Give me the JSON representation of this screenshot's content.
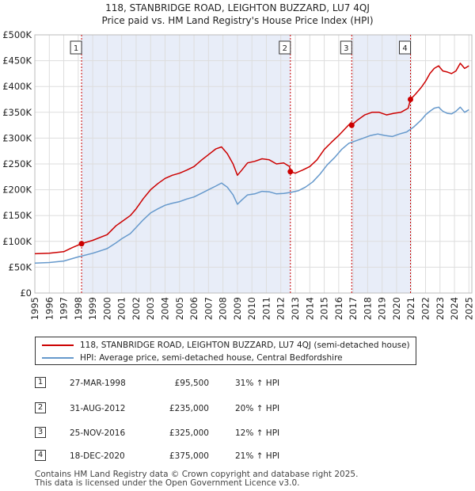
{
  "header": {
    "title_line1": "118, STANBRIDGE ROAD, LEIGHTON BUZZARD, LU7 4QJ",
    "title_line2": "Price paid vs. HM Land Registry's House Price Index (HPI)"
  },
  "colors": {
    "property": "#cc0000",
    "hpi": "#6699cc",
    "shade": "#e8edf8",
    "grid": "#dddddd",
    "marker_line": "#cc0000"
  },
  "legend": {
    "property_label": "118, STANBRIDGE ROAD, LEIGHTON BUZZARD, LU7 4QJ (semi-detached house)",
    "hpi_label": "HPI: Average price, semi-detached house, Central Bedfordshire"
  },
  "transactions": [
    {
      "num": "1",
      "date": "27-MAR-1998",
      "price": "£95,500",
      "hpi": "31% ↑ HPI"
    },
    {
      "num": "2",
      "date": "31-AUG-2012",
      "price": "£235,000",
      "hpi": "20% ↑ HPI"
    },
    {
      "num": "3",
      "date": "25-NOV-2016",
      "price": "£325,000",
      "hpi": "12% ↑ HPI"
    },
    {
      "num": "4",
      "date": "18-DEC-2020",
      "price": "£375,000",
      "hpi": "21% ↑ HPI"
    }
  ],
  "footer": {
    "line1": "Contains HM Land Registry data © Crown copyright and database right 2025.",
    "line2": "This data is licensed under the Open Government Licence v3.0."
  },
  "chart_data": {
    "type": "line",
    "title": "118, STANBRIDGE ROAD, LEIGHTON BUZZARD, LU7 4QJ — Price paid vs. HM Land Registry's House Price Index (HPI)",
    "xlim": [
      1995,
      2025.2
    ],
    "ylim": [
      0,
      500000
    ],
    "grid": true,
    "y_ticks": [
      {
        "value": 0,
        "label": "£0"
      },
      {
        "value": 50000,
        "label": "£50K"
      },
      {
        "value": 100000,
        "label": "£100K"
      },
      {
        "value": 150000,
        "label": "£150K"
      },
      {
        "value": 200000,
        "label": "£200K"
      },
      {
        "value": 250000,
        "label": "£250K"
      },
      {
        "value": 300000,
        "label": "£300K"
      },
      {
        "value": 350000,
        "label": "£350K"
      },
      {
        "value": 400000,
        "label": "£400K"
      },
      {
        "value": 450000,
        "label": "£450K"
      },
      {
        "value": 500000,
        "label": "£500K"
      }
    ],
    "x_ticks": [
      "1995",
      "1996",
      "1997",
      "1998",
      "1999",
      "2000",
      "2001",
      "2002",
      "2003",
      "2004",
      "2005",
      "2006",
      "2007",
      "2008",
      "2009",
      "2010",
      "2011",
      "2012",
      "2013",
      "2014",
      "2015",
      "2016",
      "2017",
      "2018",
      "2019",
      "2020",
      "2021",
      "2022",
      "2023",
      "2024",
      "2025"
    ],
    "shaded_ranges": [
      [
        1998.23,
        2012.66
      ],
      [
        2016.9,
        2020.96
      ]
    ],
    "sales": [
      {
        "label": "1",
        "x": 1998.23,
        "y": 95500
      },
      {
        "label": "2",
        "x": 2012.66,
        "y": 235000
      },
      {
        "label": "3",
        "x": 2016.9,
        "y": 325000
      },
      {
        "label": "4",
        "x": 2020.96,
        "y": 375000
      }
    ],
    "series": [
      {
        "name": "118, STANBRIDGE ROAD, LEIGHTON BUZZARD, LU7 4QJ (semi-detached house)",
        "color": "#cc0000",
        "x": [
          1995,
          1996,
          1997,
          1997.6,
          1998.23,
          1999,
          2000,
          2000.6,
          2001,
          2001.6,
          2002,
          2002.5,
          2003,
          2003.5,
          2004,
          2004.5,
          2005,
          2005.5,
          2006,
          2006.5,
          2007,
          2007.5,
          2007.9,
          2008.3,
          2008.7,
          2009.0,
          2009.3,
          2009.7,
          2010.2,
          2010.7,
          2011.2,
          2011.7,
          2012.2,
          2012.6,
          2012.66,
          2013.0,
          2013.5,
          2014.0,
          2014.5,
          2015.0,
          2015.5,
          2016.0,
          2016.5,
          2016.85,
          2016.9,
          2017.3,
          2017.8,
          2018.3,
          2018.8,
          2019.3,
          2019.8,
          2020.3,
          2020.8,
          2020.96,
          2021.3,
          2021.7,
          2022.0,
          2022.3,
          2022.6,
          2022.9,
          2023.2,
          2023.5,
          2023.8,
          2024.1,
          2024.4,
          2024.7,
          2025.0
        ],
        "y": [
          76000,
          77000,
          80000,
          88000,
          95500,
          102000,
          113000,
          130000,
          138000,
          150000,
          163000,
          183000,
          200000,
          212000,
          222000,
          228000,
          232000,
          238000,
          245000,
          257000,
          268000,
          279000,
          283000,
          270000,
          250000,
          228000,
          238000,
          252000,
          255000,
          260000,
          258000,
          250000,
          252000,
          245000,
          235000,
          232000,
          238000,
          245000,
          258000,
          278000,
          292000,
          305000,
          320000,
          330000,
          325000,
          335000,
          345000,
          350000,
          350000,
          345000,
          348000,
          350000,
          358000,
          375000,
          385000,
          398000,
          410000,
          425000,
          435000,
          440000,
          430000,
          428000,
          425000,
          430000,
          445000,
          435000,
          440000
        ]
      },
      {
        "name": "HPI: Average price, semi-detached house, Central Bedfordshire",
        "color": "#6699cc",
        "x": [
          1995,
          1996,
          1997,
          1998,
          1999,
          2000,
          2000.6,
          2001,
          2001.6,
          2002,
          2002.5,
          2003,
          2003.5,
          2004,
          2004.5,
          2005,
          2005.5,
          2006,
          2006.5,
          2007,
          2007.5,
          2007.9,
          2008.3,
          2008.7,
          2009.0,
          2009.3,
          2009.7,
          2010.2,
          2010.7,
          2011.2,
          2011.7,
          2012.2,
          2012.7,
          2013.2,
          2013.7,
          2014.2,
          2014.7,
          2015.2,
          2015.7,
          2016.2,
          2016.7,
          2017.2,
          2017.7,
          2018.2,
          2018.7,
          2019.2,
          2019.7,
          2020.2,
          2020.7,
          2021.2,
          2021.7,
          2022.0,
          2022.3,
          2022.6,
          2022.9,
          2023.2,
          2023.5,
          2023.8,
          2024.1,
          2024.4,
          2024.7,
          2025.0
        ],
        "y": [
          58000,
          59000,
          62000,
          70000,
          77000,
          86000,
          97000,
          105000,
          115000,
          127000,
          142000,
          155000,
          163000,
          170000,
          174000,
          177000,
          182000,
          186000,
          193000,
          200000,
          207000,
          213000,
          205000,
          190000,
          172000,
          180000,
          190000,
          192000,
          197000,
          196000,
          192000,
          193000,
          195000,
          198000,
          205000,
          215000,
          230000,
          248000,
          262000,
          278000,
          290000,
          295000,
          300000,
          305000,
          308000,
          305000,
          303000,
          308000,
          312000,
          322000,
          335000,
          345000,
          352000,
          358000,
          360000,
          352000,
          348000,
          347000,
          352000,
          360000,
          350000,
          355000
        ]
      }
    ]
  }
}
